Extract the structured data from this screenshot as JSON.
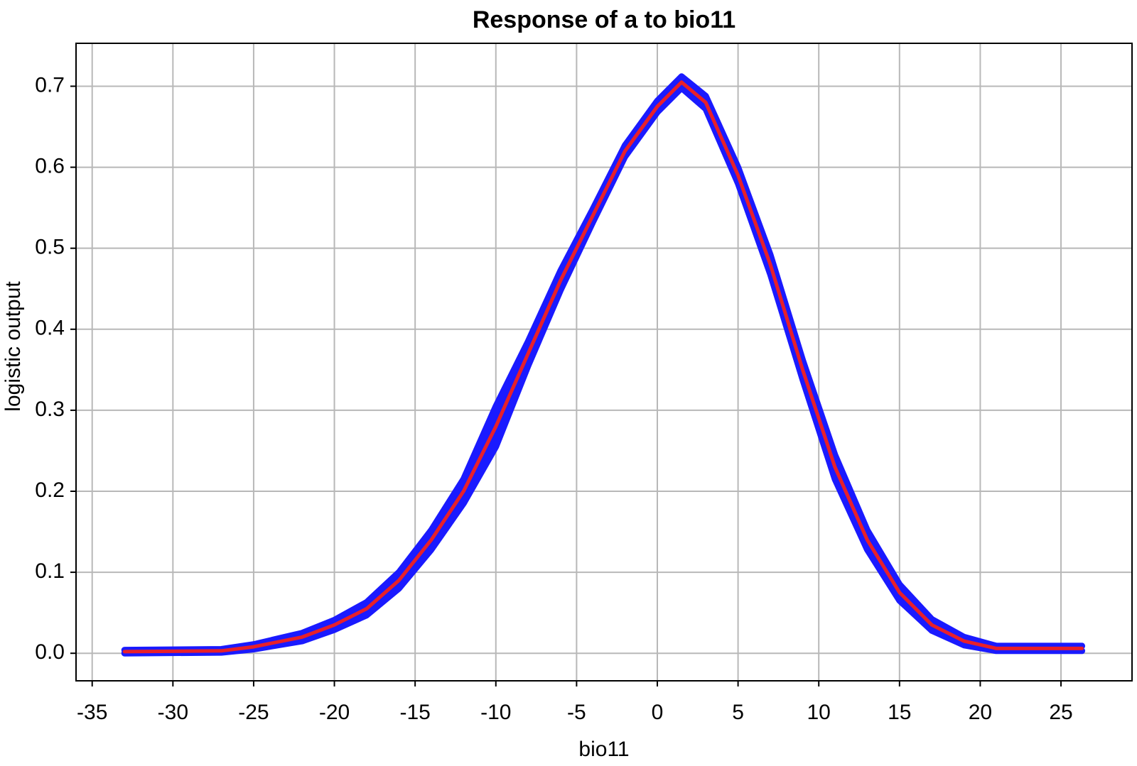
{
  "chart_data": {
    "type": "line",
    "title": "Response of a to bio11",
    "xlabel": "bio11",
    "ylabel": "logistic output",
    "x": [
      -33,
      -27,
      -25,
      -22,
      -20,
      -18,
      -16,
      -14,
      -12,
      -10,
      -8,
      -6,
      -4,
      -2,
      0,
      1.5,
      3,
      5,
      7,
      9,
      11,
      13,
      15,
      17,
      19,
      21,
      26.3
    ],
    "series": [
      {
        "color": "#1a1aff",
        "values": [
          0.0,
          0.001,
          0.005,
          0.015,
          0.029,
          0.047,
          0.08,
          0.128,
          0.185,
          0.255,
          0.355,
          0.448,
          0.532,
          0.613,
          0.668,
          0.698,
          0.672,
          0.58,
          0.468,
          0.338,
          0.215,
          0.128,
          0.065,
          0.028,
          0.01,
          0.003,
          0.003
        ]
      },
      {
        "color": "#1a1aff",
        "values": [
          0.004,
          0.005,
          0.011,
          0.025,
          0.041,
          0.063,
          0.1,
          0.152,
          0.215,
          0.305,
          0.385,
          0.472,
          0.548,
          0.627,
          0.682,
          0.712,
          0.688,
          0.6,
          0.492,
          0.362,
          0.245,
          0.152,
          0.085,
          0.042,
          0.02,
          0.009,
          0.009
        ]
      },
      {
        "color": "#e8202a",
        "values": [
          0.002,
          0.003,
          0.008,
          0.02,
          0.035,
          0.055,
          0.09,
          0.14,
          0.2,
          0.28,
          0.37,
          0.46,
          0.54,
          0.62,
          0.675,
          0.705,
          0.68,
          0.59,
          0.48,
          0.35,
          0.23,
          0.14,
          0.075,
          0.035,
          0.015,
          0.006,
          0.006
        ]
      }
    ],
    "band": [
      0,
      1
    ],
    "xlim": [
      -36,
      29.4
    ],
    "ylim": [
      -0.034,
      0.753
    ],
    "xticks": [
      -35,
      -30,
      -25,
      -20,
      -15,
      -10,
      -5,
      0,
      5,
      10,
      15,
      20,
      25
    ],
    "yticks": [
      {
        "value": 0,
        "label": "0.0"
      },
      0.1,
      0.2,
      0.3,
      0.4,
      0.5,
      0.6,
      0.7
    ],
    "grid": true
  }
}
